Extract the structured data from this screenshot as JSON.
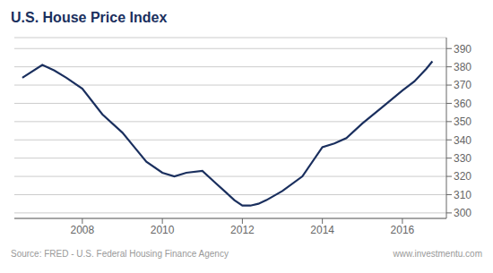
{
  "chart_data": {
    "type": "line",
    "title": "U.S. House Price Index",
    "annotations": [
      "Source: FRED - U.S. Federal Housing Finance Agency",
      "www.investmentu.com"
    ],
    "color": "#1a2f5e",
    "grid": true,
    "x": [
      2006.5,
      2007.0,
      2007.3,
      2007.6,
      2008.0,
      2008.5,
      2009.0,
      2009.3,
      2009.6,
      2010.0,
      2010.3,
      2010.6,
      2011.0,
      2011.3,
      2011.6,
      2011.8,
      2012.0,
      2012.2,
      2012.4,
      2012.6,
      2013.0,
      2013.5,
      2014.0,
      2014.3,
      2014.6,
      2015.0,
      2015.5,
      2016.0,
      2016.3,
      2016.6,
      2016.75
    ],
    "values": [
      374,
      381,
      378,
      374,
      368,
      354,
      344,
      336,
      328,
      322,
      320,
      322,
      323,
      317,
      311,
      307,
      304,
      304,
      305,
      307,
      312,
      320,
      336,
      338,
      341,
      349,
      358,
      367,
      372,
      379,
      383
    ],
    "xlim": [
      2006.3,
      2017.1
    ],
    "xticks": [
      2008,
      2010,
      2012,
      2014,
      2016
    ],
    "ylim": [
      297,
      396
    ],
    "yticks": [
      300,
      310,
      320,
      330,
      340,
      350,
      360,
      370,
      380,
      390
    ]
  }
}
